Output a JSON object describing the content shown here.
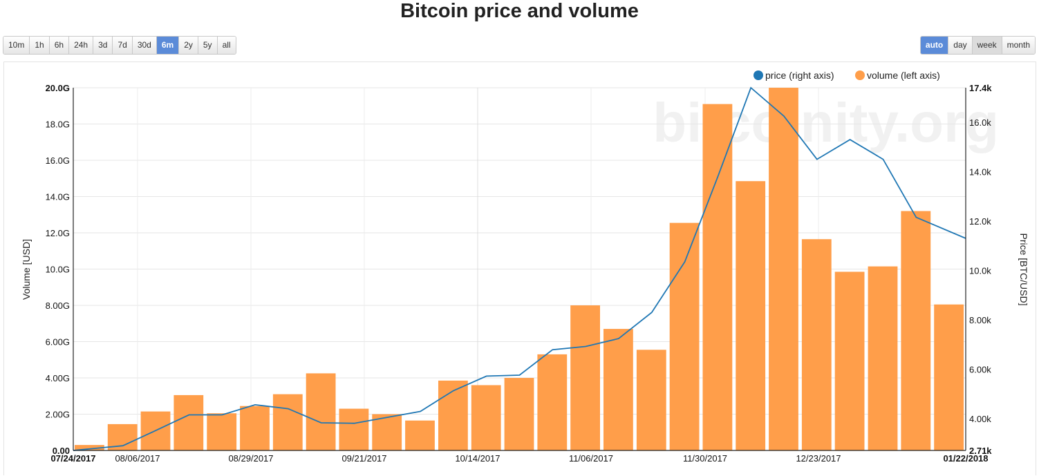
{
  "page": {
    "title": "Bitcoin price and volume"
  },
  "range_buttons": [
    {
      "label": "10m",
      "active": false
    },
    {
      "label": "1h",
      "active": false
    },
    {
      "label": "6h",
      "active": false
    },
    {
      "label": "24h",
      "active": false
    },
    {
      "label": "3d",
      "active": false
    },
    {
      "label": "7d",
      "active": false
    },
    {
      "label": "30d",
      "active": false
    },
    {
      "label": "6m",
      "active": true
    },
    {
      "label": "2y",
      "active": false
    },
    {
      "label": "5y",
      "active": false
    },
    {
      "label": "all",
      "active": false
    }
  ],
  "group_buttons": [
    {
      "label": "auto",
      "active": true
    },
    {
      "label": "day",
      "active": false
    },
    {
      "label": "week",
      "active": false,
      "pressed": true
    },
    {
      "label": "month",
      "active": false
    }
  ],
  "watermark": "bitcoinity.org",
  "colors": {
    "volume": "#ff9e4a",
    "price": "#1f77b4",
    "active_button": "#5b8bd8"
  },
  "chart_data": {
    "type": "bar",
    "title": "Bitcoin price and volume",
    "xlabel": "",
    "ylabel": "Volume [USD]",
    "y2label": "Price [BTC/USD]",
    "ylim": [
      0,
      20000000000
    ],
    "y2lim": [
      2710,
      17400
    ],
    "legend_position": "top-right",
    "grid": true,
    "x_tick_labels": [
      "07/24/2017",
      "08/06/2017",
      "08/29/2017",
      "09/21/2017",
      "10/14/2017",
      "11/06/2017",
      "11/30/2017",
      "12/23/2017",
      "01/22/2018"
    ],
    "y_tick_labels": [
      "0.00",
      "2.00G",
      "4.00G",
      "6.00G",
      "8.00G",
      "10.0G",
      "12.0G",
      "14.0G",
      "16.0G",
      "18.0G",
      "20.0G"
    ],
    "y2_tick_labels": [
      "2.71k",
      "4.00k",
      "6.00k",
      "8.00k",
      "10.0k",
      "12.0k",
      "14.0k",
      "16.0k",
      "17.4k"
    ],
    "series": [
      {
        "name": "volume (left axis)",
        "axis": "left",
        "type": "bar",
        "values": [
          0.3,
          1.45,
          2.15,
          3.05,
          2.05,
          2.45,
          3.1,
          4.25,
          2.3,
          2.0,
          1.65,
          3.85,
          3.6,
          4.0,
          5.3,
          8.0,
          6.7,
          5.55,
          12.55,
          19.1,
          14.85,
          20.0,
          11.65,
          9.85,
          10.15,
          13.2,
          8.05
        ]
      },
      {
        "name": "price (right axis)",
        "axis": "right",
        "type": "line",
        "values": [
          2710,
          2900,
          3520,
          4150,
          4150,
          4560,
          4400,
          3830,
          3810,
          4050,
          4290,
          5130,
          5720,
          5760,
          6790,
          6920,
          7240,
          8300,
          10350,
          13800,
          17400,
          16250,
          14500,
          15300,
          14500,
          12150,
          11300
        ]
      }
    ]
  }
}
